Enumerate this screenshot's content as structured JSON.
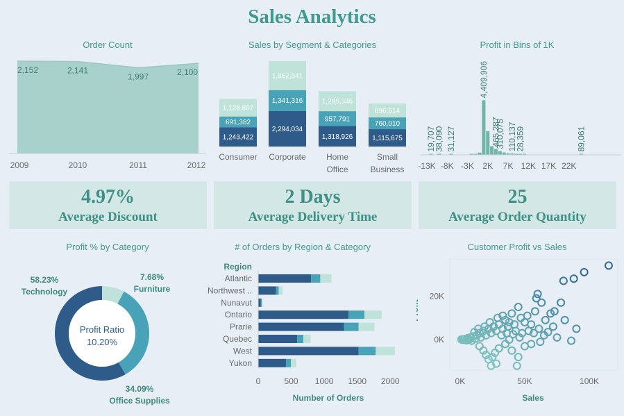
{
  "title": "Sales Analytics",
  "colors": {
    "teal_text": "#3f9a92",
    "dark_blue": "#2e5b8a",
    "mid_teal": "#49a3b8",
    "light_mint": "#bfe3d9",
    "area_fill": "#a9d1cb",
    "kpi_bg": "#d3e7e4"
  },
  "kpis": [
    {
      "value": "4.97%",
      "label": "Average Discount"
    },
    {
      "value": "2 Days",
      "label": "Average Delivery Time"
    },
    {
      "value": "25",
      "label": "Average Order Quantity"
    }
  ],
  "chart_data": [
    {
      "type": "area",
      "title": "Order Count",
      "categories": [
        "2009",
        "2010",
        "2011",
        "2012"
      ],
      "values": [
        2152,
        2141,
        1997,
        2100
      ],
      "labels": [
        "2,152",
        "2,141",
        "1,997",
        "2,100"
      ]
    },
    {
      "type": "bar",
      "stacked": true,
      "title": "Sales by Segment & Categories",
      "categories": [
        "Consumer",
        "Corporate",
        "Home Office",
        "Small Business"
      ],
      "category_lines": [
        [
          "Consumer"
        ],
        [
          "Corporate"
        ],
        [
          "Home",
          "Office"
        ],
        [
          "Small",
          "Business"
        ]
      ],
      "series": [
        {
          "values": [
            1243422,
            2294034,
            1318926,
            1115675
          ],
          "labels": [
            "1,243,422",
            "2,294,034",
            "1,318,926",
            "1,115,675"
          ]
        },
        {
          "values": [
            691382,
            1341316,
            957791,
            760010
          ],
          "labels": [
            "691,382",
            "1,341,316",
            "957,791",
            "760,010"
          ]
        },
        {
          "values": [
            1128807,
            1862841,
            1285346,
            896614
          ],
          "labels": [
            "1,128,807",
            "1,862,841",
            "1,285,346",
            "896,614"
          ]
        }
      ]
    },
    {
      "type": "bar",
      "title": "Profit in Bins of 1K",
      "x": [
        -13,
        -12,
        -11,
        -10,
        -9,
        -8,
        -7,
        -6,
        -5,
        -4,
        -3,
        -2,
        -1,
        0,
        1,
        2,
        3,
        4,
        5,
        6,
        7,
        8,
        9,
        10,
        11,
        12,
        13,
        14,
        15,
        16,
        17,
        18,
        19,
        20,
        21,
        22,
        23,
        24,
        25,
        26,
        27,
        28
      ],
      "values": [
        0,
        19707,
        0,
        38090,
        0,
        0,
        31127,
        0,
        0,
        0,
        0,
        20000,
        60000,
        180000,
        4409906,
        1900000,
        700000,
        465287,
        310075,
        190000,
        120000,
        110137,
        60000,
        28359,
        10000,
        0,
        0,
        0,
        0,
        0,
        0,
        0,
        0,
        0,
        0,
        0,
        0,
        0,
        89061,
        0,
        0,
        0
      ],
      "labels": [
        {
          "x": -12,
          "text": "19,707"
        },
        {
          "x": -10,
          "text": "38,090"
        },
        {
          "x": -7,
          "text": "31,127"
        },
        {
          "x": 1,
          "text": "4,409,906"
        },
        {
          "x": 4,
          "text": "465,287"
        },
        {
          "x": 5,
          "text": "310,075"
        },
        {
          "x": 8,
          "text": "110,137"
        },
        {
          "x": 10,
          "text": "28,359"
        },
        {
          "x": 25,
          "text": "89,061"
        }
      ],
      "xtick_labels": [
        "-13K",
        "-8K",
        "-3K",
        "2K",
        "7K",
        "12K",
        "17K",
        "22K"
      ]
    },
    {
      "type": "pie",
      "title": "Profit % by Category",
      "slices": [
        {
          "label": "Furniture",
          "value": 7.68,
          "pct": "7.68%"
        },
        {
          "label": "Office Supplies",
          "value": 34.09,
          "pct": "34.09%"
        },
        {
          "label": "Technology",
          "value": 58.23,
          "pct": "58.23%"
        }
      ],
      "center_title": "Profit Ratio",
      "center_value": "10.20%"
    },
    {
      "type": "bar",
      "orientation": "horizontal",
      "stacked": true,
      "title": "# of Orders by Region & Category",
      "axis_header": "Region",
      "categories": [
        "Atlantic",
        "Northwest ..",
        "Nunavut",
        "Ontario",
        "Prarie",
        "Quebec",
        "West",
        "Yukon"
      ],
      "series": [
        {
          "values": [
            800,
            270,
            40,
            1370,
            1300,
            590,
            1520,
            420
          ]
        },
        {
          "values": [
            140,
            40,
            15,
            240,
            220,
            95,
            260,
            75
          ]
        },
        {
          "values": [
            170,
            60,
            10,
            260,
            240,
            110,
            290,
            80
          ]
        }
      ],
      "xlabel": "Number of Orders",
      "xticks": [
        0,
        500,
        1000,
        1500,
        2000
      ],
      "xlim": [
        0,
        2050
      ]
    },
    {
      "type": "scatter",
      "title": "Customer Profit vs Sales",
      "xlabel": "Sales",
      "ylabel": "Profit",
      "xticks": [
        {
          "v": 0,
          "t": "0K"
        },
        {
          "v": 50000,
          "t": "50K"
        },
        {
          "v": 100000,
          "t": "100K"
        }
      ],
      "yticks": [
        {
          "v": 0,
          "t": "0K"
        },
        {
          "v": 20000,
          "t": "20K"
        }
      ],
      "points": [
        [
          115000,
          34000
        ],
        [
          96000,
          31000
        ],
        [
          88000,
          28000
        ],
        [
          80000,
          27000
        ],
        [
          60000,
          21000
        ],
        [
          63000,
          17000
        ],
        [
          59000,
          19000
        ],
        [
          45000,
          15000
        ],
        [
          58000,
          13000
        ],
        [
          73000,
          13000
        ],
        [
          78000,
          17000
        ],
        [
          81000,
          9000
        ],
        [
          70000,
          12000
        ],
        [
          66000,
          9000
        ],
        [
          52000,
          11000
        ],
        [
          55000,
          7000
        ],
        [
          50000,
          8000
        ],
        [
          47000,
          10000
        ],
        [
          42000,
          7000
        ],
        [
          40000,
          12000
        ],
        [
          38000,
          8000
        ],
        [
          35000,
          9000
        ],
        [
          33000,
          5000
        ],
        [
          30000,
          7000
        ],
        [
          28000,
          4000
        ],
        [
          26000,
          6000
        ],
        [
          24000,
          3000
        ],
        [
          22000,
          5000
        ],
        [
          20000,
          2000
        ],
        [
          18000,
          4000
        ],
        [
          16000,
          1000
        ],
        [
          15000,
          3000
        ],
        [
          13000,
          2000
        ],
        [
          12000,
          500
        ],
        [
          10000,
          1500
        ],
        [
          9000,
          -500
        ],
        [
          8000,
          1000
        ],
        [
          7000,
          0
        ],
        [
          6000,
          800
        ],
        [
          5000,
          -300
        ],
        [
          4000,
          400
        ],
        [
          3000,
          200
        ],
        [
          2000,
          -100
        ],
        [
          1000,
          100
        ],
        [
          35000,
          -2000
        ],
        [
          30000,
          -4000
        ],
        [
          27000,
          -6000
        ],
        [
          25000,
          -8000
        ],
        [
          22000,
          -9000
        ],
        [
          28000,
          -11000
        ],
        [
          44000,
          -12000
        ],
        [
          24000,
          -12000
        ],
        [
          20000,
          -7000
        ],
        [
          18000,
          -5000
        ],
        [
          15000,
          -3000
        ],
        [
          40000,
          -5000
        ],
        [
          45000,
          -8000
        ],
        [
          50000,
          -3000
        ],
        [
          55000,
          -2000
        ],
        [
          62000,
          -1000
        ],
        [
          75000,
          1000
        ],
        [
          90000,
          5000
        ],
        [
          86000,
          -500
        ],
        [
          32000,
          2000
        ],
        [
          36000,
          3000
        ],
        [
          38000,
          0
        ],
        [
          41000,
          2500
        ],
        [
          43000,
          4000
        ],
        [
          46000,
          1000
        ],
        [
          48000,
          3000
        ],
        [
          53000,
          4000
        ],
        [
          57000,
          3000
        ],
        [
          61000,
          5000
        ],
        [
          65000,
          2000
        ],
        [
          68000,
          3500
        ],
        [
          72000,
          6000
        ],
        [
          29000,
          10000
        ],
        [
          33000,
          11000
        ],
        [
          37000,
          6000
        ],
        [
          23000,
          8000
        ],
        [
          19000,
          6000
        ],
        [
          14000,
          5000
        ],
        [
          11000,
          3500
        ]
      ],
      "xlim": [
        -8000,
        122000
      ],
      "ylim": [
        -14000,
        37000
      ]
    }
  ]
}
